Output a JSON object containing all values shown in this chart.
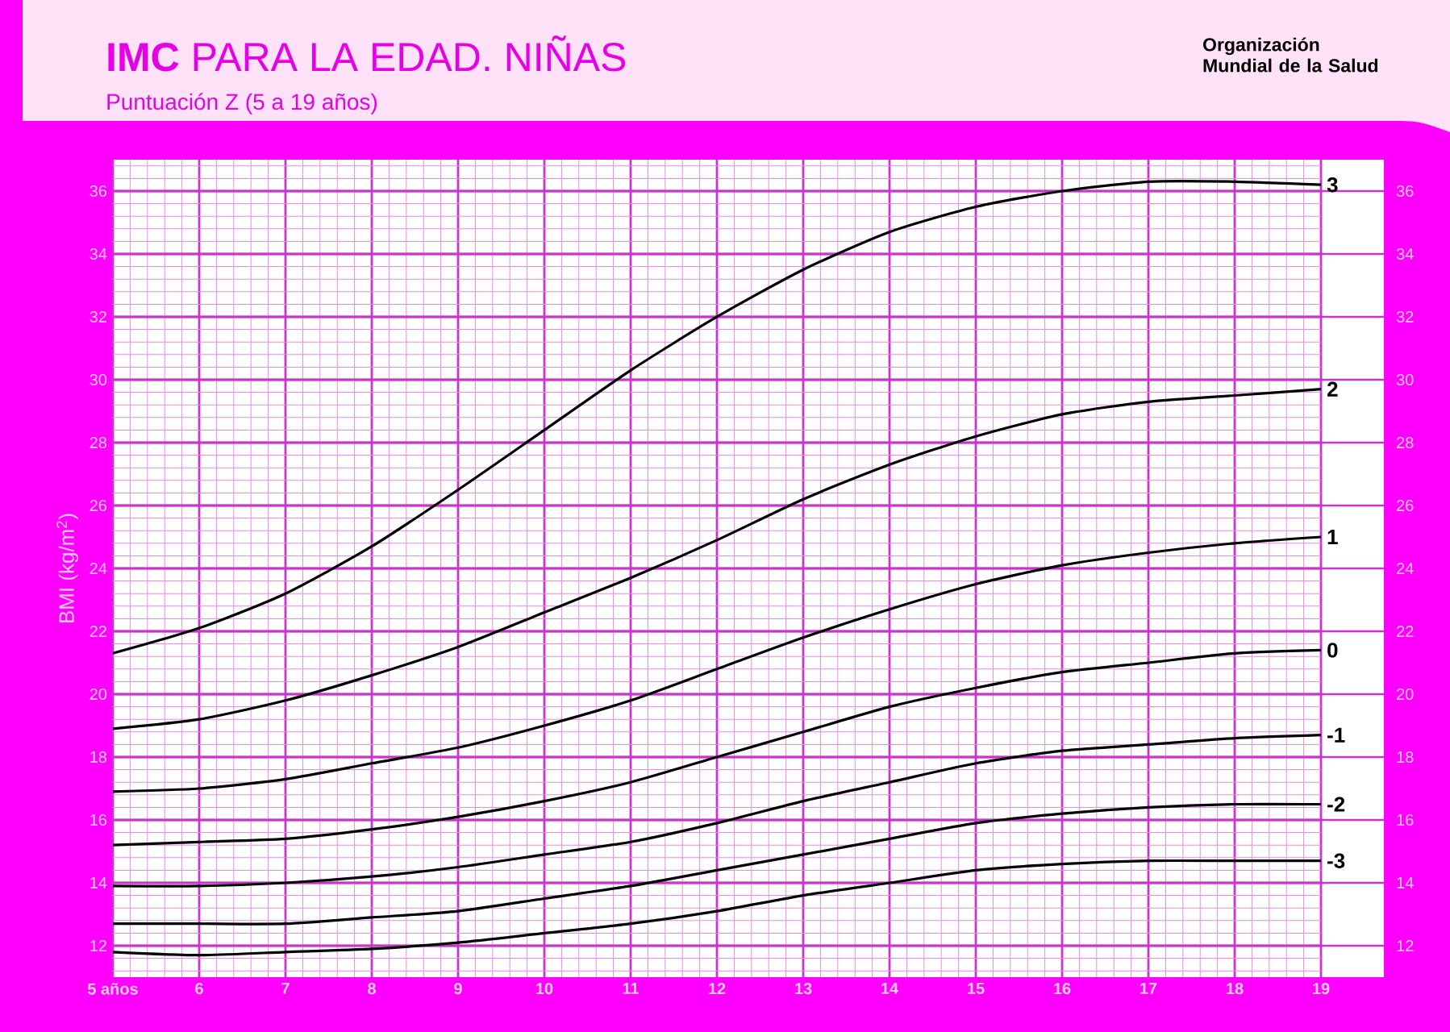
{
  "chart_data": {
    "type": "line",
    "title": "**IMC** PARA LA EDAD. NIÑAS",
    "subtitle": "Puntuación Z (5 a 19 años)",
    "ylabel": "BMI (kg/m$^{2}$)",
    "annotations": [
      "Organización Mundial de la Salud"
    ],
    "x": [
      5,
      6,
      7,
      8,
      9,
      10,
      11,
      12,
      13,
      14,
      15,
      16,
      17,
      18,
      19
    ],
    "xlim": [
      5,
      19
    ],
    "xticks": [
      {
        "value": 5,
        "label": "5 años"
      },
      6,
      7,
      8,
      9,
      10,
      11,
      12,
      13,
      14,
      15,
      16,
      17,
      18,
      19,
      {
        "value": 5.2,
        "label": null
      },
      {
        "value": 5.4,
        "label": null
      },
      {
        "value": 5.6,
        "label": null
      },
      {
        "value": 5.8,
        "label": null
      },
      {
        "value": 6.2,
        "label": null
      },
      {
        "value": 6.4,
        "label": null
      },
      {
        "value": 6.6,
        "label": null
      },
      {
        "value": 6.8,
        "label": null
      },
      {
        "value": 7.2,
        "label": null
      },
      {
        "value": 7.4,
        "label": null
      },
      {
        "value": 7.6,
        "label": null
      },
      {
        "value": 7.8,
        "label": null
      },
      {
        "value": 8.2,
        "label": null
      },
      {
        "value": 8.4,
        "label": null
      },
      {
        "value": 8.6,
        "label": null
      },
      {
        "value": 8.8,
        "label": null
      },
      {
        "value": 9.2,
        "label": null
      },
      {
        "value": 9.4,
        "label": null
      },
      {
        "value": 9.6,
        "label": null
      },
      {
        "value": 9.8,
        "label": null
      },
      {
        "value": 10.2,
        "label": null
      },
      {
        "value": 10.4,
        "label": null
      },
      {
        "value": 10.6,
        "label": null
      },
      {
        "value": 10.8,
        "label": null
      },
      {
        "value": 11.2,
        "label": null
      },
      {
        "value": 11.4,
        "label": null
      },
      {
        "value": 11.6,
        "label": null
      },
      {
        "value": 11.8,
        "label": null
      },
      {
        "value": 12.2,
        "label": null
      },
      {
        "value": 12.4,
        "label": null
      },
      {
        "value": 12.6,
        "label": null
      },
      {
        "value": 12.8,
        "label": null
      },
      {
        "value": 13.2,
        "label": null
      },
      {
        "value": 13.4,
        "label": null
      },
      {
        "value": 13.6,
        "label": null
      },
      {
        "value": 13.8,
        "label": null
      },
      {
        "value": 14.2,
        "label": null
      },
      {
        "value": 14.4,
        "label": null
      },
      {
        "value": 14.6,
        "label": null
      },
      {
        "value": 14.8,
        "label": null
      },
      {
        "value": 15.2,
        "label": null
      },
      {
        "value": 15.4,
        "label": null
      },
      {
        "value": 15.6,
        "label": null
      },
      {
        "value": 15.8,
        "label": null
      },
      {
        "value": 16.2,
        "label": null
      },
      {
        "value": 16.4,
        "label": null
      },
      {
        "value": 16.6,
        "label": null
      },
      {
        "value": 16.8,
        "label": null
      },
      {
        "value": 17.2,
        "label": null
      },
      {
        "value": 17.4,
        "label": null
      },
      {
        "value": 17.6,
        "label": null
      },
      {
        "value": 17.8,
        "label": null
      },
      {
        "value": 18.2,
        "label": null
      },
      {
        "value": 18.4,
        "label": null
      },
      {
        "value": 18.6,
        "label": null
      },
      {
        "value": 18.8,
        "label": null
      }
    ],
    "ylim": [
      11,
      37
    ],
    "yticks": [
      12,
      14,
      16,
      18,
      20,
      22,
      24,
      26,
      28,
      30,
      32,
      34,
      36,
      {
        "value": 11.2,
        "label": null
      },
      {
        "value": 11.6,
        "label": null
      },
      {
        "value": 12.4,
        "label": null
      },
      {
        "value": 12.8,
        "label": null
      },
      {
        "value": 13.2,
        "label": null
      },
      {
        "value": 13.6,
        "label": null
      },
      {
        "value": 14.4,
        "label": null
      },
      {
        "value": 14.8,
        "label": null
      },
      {
        "value": 15.2,
        "label": null
      },
      {
        "value": 15.6,
        "label": null
      },
      {
        "value": 16.4,
        "label": null
      },
      {
        "value": 16.8,
        "label": null
      },
      {
        "value": 17.2,
        "label": null
      },
      {
        "value": 17.6,
        "label": null
      },
      {
        "value": 18.4,
        "label": null
      },
      {
        "value": 18.8,
        "label": null
      },
      {
        "value": 19.2,
        "label": null
      },
      {
        "value": 19.6,
        "label": null
      },
      {
        "value": 20.4,
        "label": null
      },
      {
        "value": 20.8,
        "label": null
      },
      {
        "value": 21.2,
        "label": null
      },
      {
        "value": 21.6,
        "label": null
      },
      {
        "value": 22.4,
        "label": null
      },
      {
        "value": 22.8,
        "label": null
      },
      {
        "value": 23.2,
        "label": null
      },
      {
        "value": 23.6,
        "label": null
      },
      {
        "value": 24.4,
        "label": null
      },
      {
        "value": 24.8,
        "label": null
      },
      {
        "value": 25.2,
        "label": null
      },
      {
        "value": 25.6,
        "label": null
      },
      {
        "value": 26.4,
        "label": null
      },
      {
        "value": 26.8,
        "label": null
      },
      {
        "value": 27.2,
        "label": null
      },
      {
        "value": 27.6,
        "label": null
      },
      {
        "value": 28.4,
        "label": null
      },
      {
        "value": 28.8,
        "label": null
      },
      {
        "value": 29.2,
        "label": null
      },
      {
        "value": 29.6,
        "label": null
      },
      {
        "value": 30.4,
        "label": null
      },
      {
        "value": 30.8,
        "label": null
      },
      {
        "value": 31.2,
        "label": null
      },
      {
        "value": 31.6,
        "label": null
      },
      {
        "value": 32.4,
        "label": null
      },
      {
        "value": 32.8,
        "label": null
      },
      {
        "value": 33.2,
        "label": null
      },
      {
        "value": 33.6,
        "label": null
      },
      {
        "value": 34.4,
        "label": null
      },
      {
        "value": 34.8,
        "label": null
      },
      {
        "value": 35.2,
        "label": null
      },
      {
        "value": 35.6,
        "label": null
      },
      {
        "value": 36.4,
        "label": null
      },
      {
        "value": 36.8,
        "label": null
      }
    ],
    "y2lim": [
      11,
      37
    ],
    "y2ticks": [
      12,
      14,
      16,
      18,
      20,
      22,
      24,
      26,
      28,
      30,
      32,
      34,
      36
    ],
    "grid": true,
    "legend": false,
    "marker": "none",
    "series": [
      {
        "name": "3",
        "color": "#000000",
        "values": [
          21.3,
          22.1,
          23.2,
          24.7,
          26.5,
          28.4,
          30.3,
          32.0,
          33.5,
          34.7,
          35.5,
          36.0,
          36.3,
          36.3,
          36.2
        ]
      },
      {
        "name": "2",
        "color": "#000000",
        "values": [
          18.9,
          19.2,
          19.8,
          20.6,
          21.5,
          22.6,
          23.7,
          24.9,
          26.2,
          27.3,
          28.2,
          28.9,
          29.3,
          29.5,
          29.7
        ]
      },
      {
        "name": "1",
        "color": "#000000",
        "values": [
          16.9,
          17.0,
          17.3,
          17.8,
          18.3,
          19.0,
          19.8,
          20.8,
          21.8,
          22.7,
          23.5,
          24.1,
          24.5,
          24.8,
          25.0
        ]
      },
      {
        "name": "0",
        "color": "#000000",
        "values": [
          15.2,
          15.3,
          15.4,
          15.7,
          16.1,
          16.6,
          17.2,
          18.0,
          18.8,
          19.6,
          20.2,
          20.7,
          21.0,
          21.3,
          21.4
        ]
      },
      {
        "name": "-1",
        "color": "#000000",
        "values": [
          13.9,
          13.9,
          14.0,
          14.2,
          14.5,
          14.9,
          15.3,
          15.9,
          16.6,
          17.2,
          17.8,
          18.2,
          18.4,
          18.6,
          18.7
        ]
      },
      {
        "name": "-2",
        "color": "#000000",
        "values": [
          12.7,
          12.7,
          12.7,
          12.9,
          13.1,
          13.5,
          13.9,
          14.4,
          14.9,
          15.4,
          15.9,
          16.2,
          16.4,
          16.5,
          16.5
        ]
      },
      {
        "name": "-3",
        "color": "#000000",
        "values": [
          11.8,
          11.7,
          11.8,
          11.9,
          12.1,
          12.4,
          12.7,
          13.1,
          13.6,
          14.0,
          14.4,
          14.6,
          14.7,
          14.7,
          14.7
        ]
      }
    ]
  }
}
